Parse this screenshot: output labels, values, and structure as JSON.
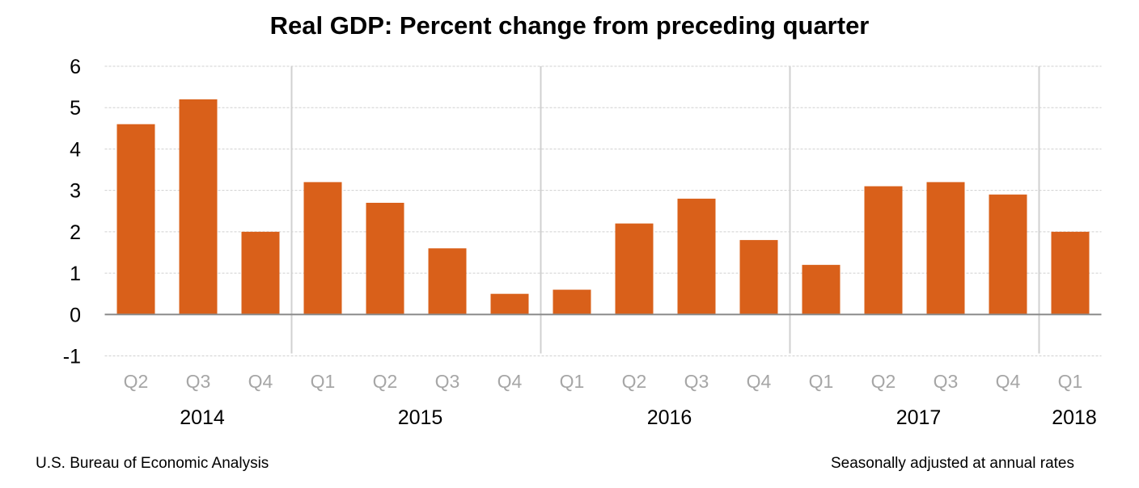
{
  "chart_data": {
    "type": "bar",
    "title": "Real GDP:  Percent change from preceding quarter",
    "categories": [
      "Q2",
      "Q3",
      "Q4",
      "Q1",
      "Q2",
      "Q3",
      "Q4",
      "Q1",
      "Q2",
      "Q3",
      "Q4",
      "Q1",
      "Q2",
      "Q3",
      "Q4",
      "Q1"
    ],
    "years": [
      {
        "label": "2014",
        "start": 0,
        "end": 2
      },
      {
        "label": "2015",
        "start": 3,
        "end": 6
      },
      {
        "label": "2016",
        "start": 7,
        "end": 10
      },
      {
        "label": "2017",
        "start": 11,
        "end": 14
      },
      {
        "label": "2018",
        "start": 15,
        "end": 15
      }
    ],
    "values": [
      4.6,
      5.2,
      2.0,
      3.2,
      2.7,
      1.6,
      0.5,
      0.6,
      2.2,
      2.8,
      1.8,
      1.2,
      3.1,
      3.2,
      2.9,
      2.0
    ],
    "ylim": [
      -1,
      6
    ],
    "yticks": [
      "6",
      "5",
      "4",
      "3",
      "2",
      "1",
      "0",
      "-1"
    ],
    "grid": true,
    "bar_color": "#D9601A"
  },
  "footer": {
    "source": "U.S. Bureau of Economic Analysis",
    "note": "Seasonally adjusted at annual rates"
  }
}
